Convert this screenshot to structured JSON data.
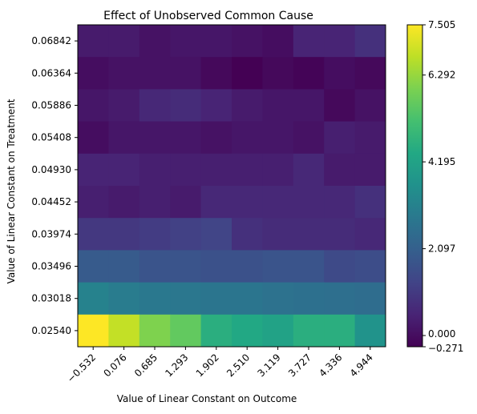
{
  "chart_data": {
    "type": "heatmap",
    "title": "Effect of Unobserved Common Cause",
    "xlabel": "Value of Linear Constant on Outcome",
    "ylabel": "Value of Linear Constant on Treatment",
    "x_categories": [
      "−0.532",
      "0.076",
      "0.685",
      "1.293",
      "1.902",
      "2.510",
      "3.119",
      "3.727",
      "4.336",
      "4.944"
    ],
    "y_categories": [
      "0.06842",
      "0.06364",
      "0.05886",
      "0.05408",
      "0.04930",
      "0.04452",
      "0.03974",
      "0.03496",
      "0.03018",
      "0.02540"
    ],
    "values": [
      [
        0.3,
        0.3,
        0.1,
        0.2,
        0.2,
        0.1,
        0.0,
        0.5,
        0.5,
        0.8
      ],
      [
        0.0,
        0.1,
        0.1,
        0.1,
        -0.1,
        -0.27,
        -0.1,
        -0.2,
        0.0,
        -0.1
      ],
      [
        0.2,
        0.3,
        0.6,
        0.7,
        0.5,
        0.3,
        0.2,
        0.2,
        -0.1,
        0.1
      ],
      [
        0.0,
        0.2,
        0.2,
        0.2,
        0.1,
        0.2,
        0.2,
        0.1,
        0.4,
        0.3
      ],
      [
        0.5,
        0.5,
        0.4,
        0.4,
        0.4,
        0.4,
        0.4,
        0.6,
        0.3,
        0.3
      ],
      [
        0.4,
        0.3,
        0.4,
        0.3,
        0.6,
        0.6,
        0.6,
        0.6,
        0.6,
        0.8
      ],
      [
        1.0,
        1.0,
        1.1,
        1.2,
        1.3,
        0.8,
        0.7,
        0.7,
        0.7,
        0.6
      ],
      [
        1.95,
        1.95,
        1.75,
        1.75,
        1.65,
        1.65,
        1.75,
        1.75,
        1.45,
        1.55
      ],
      [
        3.15,
        2.95,
        2.85,
        2.8,
        2.75,
        2.75,
        2.65,
        2.6,
        2.55,
        2.5
      ],
      [
        7.505,
        6.8,
        6.0,
        5.6,
        4.6,
        4.4,
        4.2,
        4.6,
        4.6,
        3.7
      ]
    ],
    "colormap": "viridis",
    "vmin": -0.271,
    "vmax": 7.505,
    "colorbar_ticks": [
      "0.000",
      "2.097",
      "4.195",
      "6.292"
    ],
    "colorbar_tick_values": [
      0.0,
      2.097,
      4.195,
      6.292
    ],
    "colorbar_min_label": "−0.271",
    "colorbar_max_label": "7.505",
    "grid": false
  }
}
